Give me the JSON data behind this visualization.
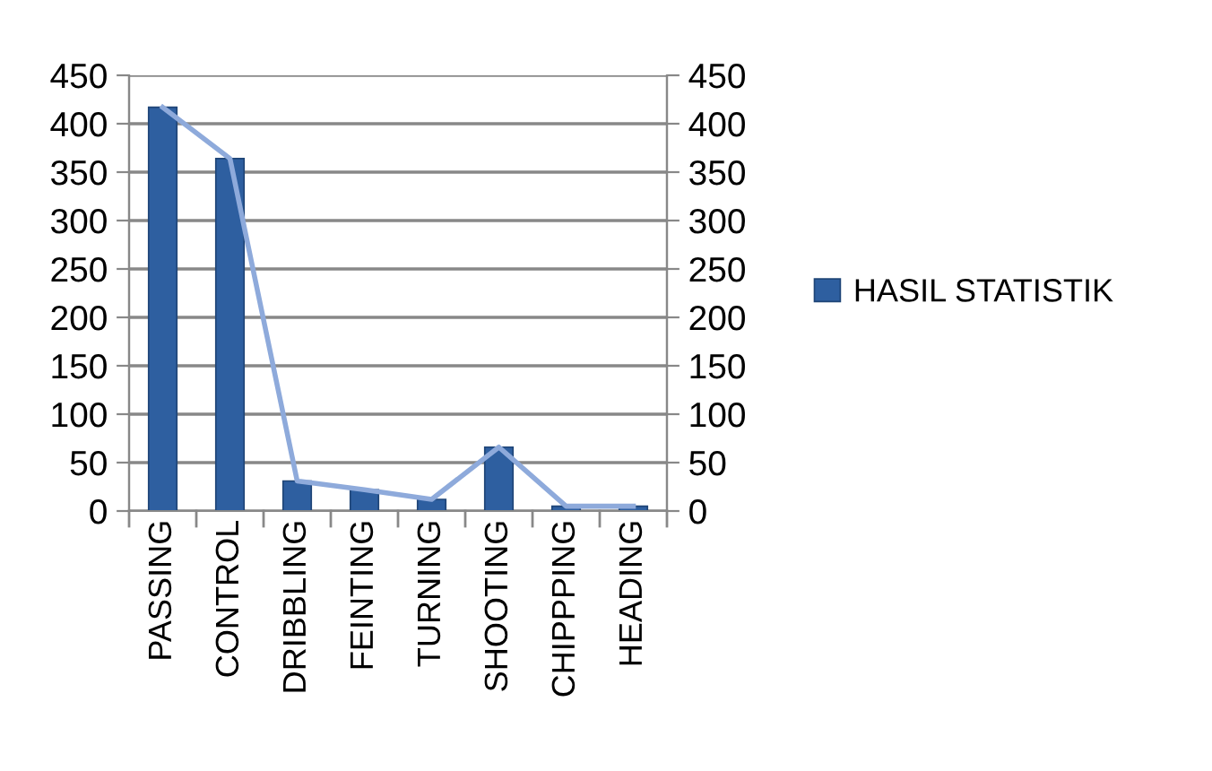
{
  "chart_data": {
    "type": "bar",
    "categories": [
      "PASSING",
      "CONTROL",
      "DRIBBLING",
      "FEINTING",
      "TURNING",
      "SHOOTING",
      "CHIPPPING",
      "HEADING"
    ],
    "series": [
      {
        "name": "HASIL STATISTIK",
        "color": "#2e5fa0",
        "values": [
          417,
          364,
          31,
          22,
          12,
          66,
          5,
          5
        ]
      },
      {
        "type": "line",
        "color": "#8eaadb",
        "values": [
          417,
          364,
          31,
          22,
          12,
          66,
          5,
          5
        ]
      }
    ],
    "ylim": [
      0,
      450
    ],
    "yticks": [
      0,
      50,
      100,
      150,
      200,
      250,
      300,
      350,
      400,
      450
    ],
    "y2lim": [
      0,
      450
    ],
    "y2ticks": [
      0,
      50,
      100,
      150,
      200,
      250,
      300,
      350,
      400,
      450
    ],
    "grid": "y",
    "legend": "right"
  }
}
